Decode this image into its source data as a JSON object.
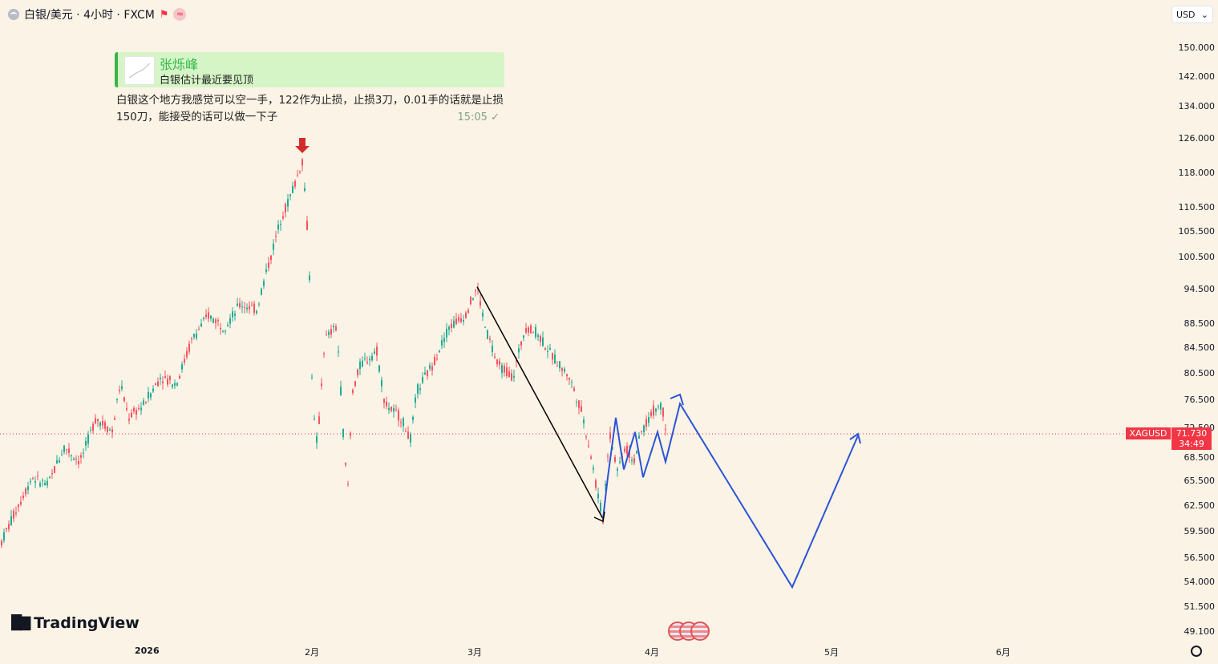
{
  "header": {
    "symbol_title": "白银/美元 · 4小时 · FXCM",
    "symbol_icon": "silver-coin-icon",
    "flag_icon": "flag-icon",
    "indicator_icon": "wave-icon"
  },
  "currency_select": {
    "value": "USD"
  },
  "message": {
    "author": "张烁峰",
    "quoted_text": "白银估计最近要见顶",
    "body": "白银这个地方我感觉可以空一手，122作为止损，止损3刀，0.01手的话就是止损150刀，能接受的话可以做一下子",
    "time": "15:05",
    "status_icon": "check-icon"
  },
  "price_tags": {
    "symbol": "XAGUSD",
    "price": "71.730",
    "countdown": "34:49"
  },
  "branding": {
    "logo_text": "TradingView",
    "logo_icon": "tradingview-logo-icon"
  },
  "chart_data": {
    "type": "line",
    "title": "",
    "y_axis_labels": [
      "150.000",
      "142.000",
      "134.000",
      "126.000",
      "118.000",
      "110.500",
      "105.500",
      "100.500",
      "94.500",
      "88.500",
      "84.500",
      "80.500",
      "76.500",
      "72.500",
      "68.500",
      "65.500",
      "62.500",
      "59.500",
      "56.500",
      "54.000",
      "51.500",
      "49.100"
    ],
    "x_axis_labels": [
      "2026",
      "2月",
      "3月",
      "4月",
      "5月",
      "6月"
    ],
    "current_price": 71.73,
    "series": [
      {
        "kind": "candlestick-approx",
        "points": [
          [
            0,
            58
          ],
          [
            20,
            62
          ],
          [
            40,
            66
          ],
          [
            60,
            65
          ],
          [
            80,
            70
          ],
          [
            100,
            68
          ],
          [
            120,
            74
          ],
          [
            140,
            72
          ],
          [
            150,
            79
          ],
          [
            160,
            74
          ],
          [
            180,
            76
          ],
          [
            200,
            80
          ],
          [
            220,
            79
          ],
          [
            240,
            86
          ],
          [
            260,
            90
          ],
          [
            280,
            88
          ],
          [
            300,
            92
          ],
          [
            320,
            91
          ],
          [
            340,
            102
          ],
          [
            350,
            108
          ],
          [
            360,
            112
          ],
          [
            370,
            117
          ],
          [
            377,
            121
          ],
          [
            382,
            110
          ],
          [
            386,
            97
          ],
          [
            390,
            75
          ],
          [
            396,
            70
          ],
          [
            405,
            86
          ],
          [
            420,
            88
          ],
          [
            430,
            68
          ],
          [
            434,
            65
          ],
          [
            440,
            78
          ],
          [
            450,
            82
          ],
          [
            470,
            84
          ],
          [
            480,
            76
          ],
          [
            500,
            74
          ],
          [
            512,
            71
          ],
          [
            520,
            78
          ],
          [
            540,
            82
          ],
          [
            560,
            88
          ],
          [
            580,
            90
          ],
          [
            595,
            95
          ],
          [
            605,
            88
          ],
          [
            620,
            82
          ],
          [
            640,
            80
          ],
          [
            655,
            88
          ],
          [
            670,
            87
          ],
          [
            690,
            83
          ],
          [
            710,
            80
          ],
          [
            725,
            75
          ],
          [
            735,
            70
          ],
          [
            745,
            64
          ],
          [
            752,
            61
          ],
          [
            760,
            72
          ],
          [
            770,
            67
          ],
          [
            780,
            70
          ],
          [
            790,
            68
          ],
          [
            800,
            72
          ],
          [
            815,
            75
          ],
          [
            825,
            76
          ],
          [
            830,
            73
          ]
        ]
      },
      {
        "kind": "projection-black-arrow",
        "points": [
          [
            595,
            95
          ],
          [
            752,
            61
          ]
        ]
      },
      {
        "kind": "projection-blue-path",
        "points": [
          [
            752,
            61
          ],
          [
            758,
            66
          ],
          [
            768,
            74
          ],
          [
            778,
            67
          ],
          [
            792,
            72
          ],
          [
            802,
            66
          ],
          [
            820,
            72
          ],
          [
            830,
            68
          ],
          [
            848,
            76
          ],
          [
            988,
            53.5
          ],
          [
            1070,
            71.5
          ]
        ]
      }
    ],
    "markers": [
      {
        "name": "red-down-arrow",
        "x": 377,
        "y": 124
      }
    ],
    "grid": false,
    "legend": "none"
  }
}
